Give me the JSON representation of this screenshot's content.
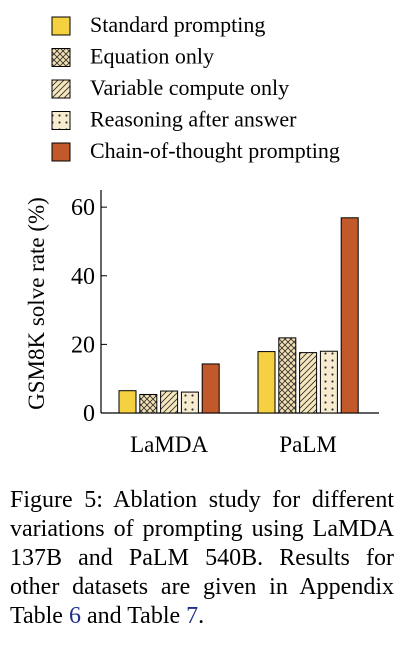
{
  "chart_data": {
    "type": "bar",
    "categories": [
      "LaMDA",
      "PaLM"
    ],
    "series": [
      {
        "name": "Standard prompting",
        "values": [
          6.5,
          17.9
        ],
        "color": "#f5d142",
        "pattern": "solid"
      },
      {
        "name": "Equation only",
        "values": [
          5.4,
          21.9
        ],
        "color": "#f3dfb0",
        "pattern": "crosshatch"
      },
      {
        "name": "Variable compute only",
        "values": [
          6.4,
          17.6
        ],
        "color": "#f6e7bd",
        "pattern": "diagonal"
      },
      {
        "name": "Reasoning after answer",
        "values": [
          6.1,
          18.0
        ],
        "color": "#f7ecd0",
        "pattern": "dots"
      },
      {
        "name": "Chain-of-thought prompting",
        "values": [
          14.3,
          56.9
        ],
        "color": "#c1592a",
        "pattern": "solid"
      }
    ],
    "ylabel": "GSM8K solve rate (%)",
    "xlabel": "",
    "ylim": [
      0,
      65
    ],
    "yticks": [
      0,
      20,
      40,
      60
    ],
    "legend_position": "top"
  },
  "caption": {
    "prefix": "Figure 5:   Ablation study for different variations of prompting using LaMDA 137B and PaLM 540B. Results for other datasets are given in Appendix Table ",
    "ref1": "6",
    "middle": " and Table ",
    "ref2": "7",
    "suffix": "."
  }
}
